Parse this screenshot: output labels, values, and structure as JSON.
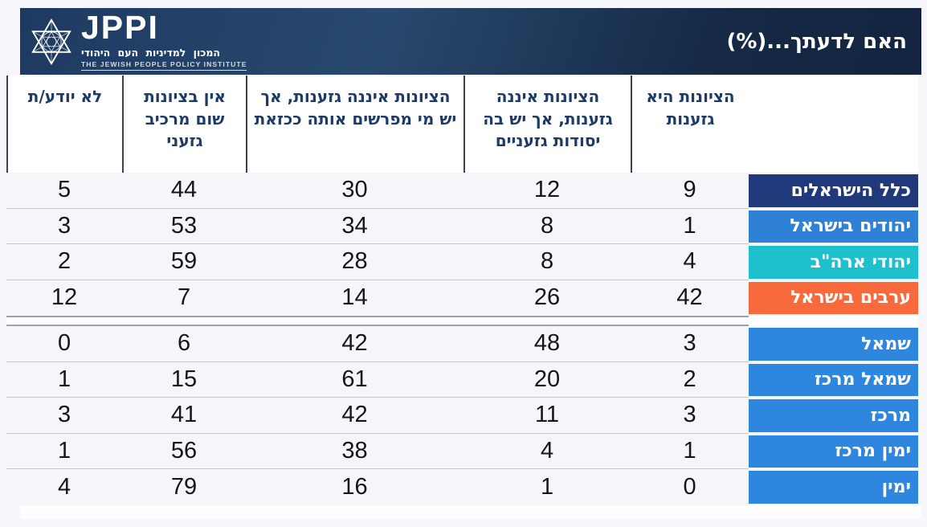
{
  "title": "האם לדעתך...(%)",
  "brand": {
    "acronym": "JPPI",
    "hebrew_name": "המכון למדיניות העם היהודי",
    "english_name": "THE JEWISH PEOPLE POLICY INSTITUTE"
  },
  "colors": {
    "band_navy": "#1e3a62",
    "header_text": "#1e3a67",
    "all_israelis": "#20397b",
    "jews_israel": "#2f81d5",
    "us_jews": "#1dc0cc",
    "arabs_israel": "#f86a3c",
    "political_blue": "#2e86de"
  },
  "chart_data": {
    "type": "table",
    "title": "האם לדעתך...(%)",
    "direction": "rtl",
    "columns": [
      "הציונות היא גזענות",
      "הציונות איננה גזענות, אך יש בה יסודות גזעניים",
      "הציונות איננה גזענות, אך יש מי מפרשים אותה ככזאת",
      "אין בציונות שום מרכיב גזעני",
      "לא יודע/ת"
    ],
    "groups": [
      {
        "name": "audiences",
        "rows": [
          {
            "label": "כלל הישראלים",
            "color": "#20397b",
            "values": [
              9,
              12,
              30,
              44,
              5
            ]
          },
          {
            "label": "יהודים בישראל",
            "color": "#2f81d5",
            "values": [
              1,
              8,
              34,
              53,
              3
            ]
          },
          {
            "label": "יהודי ארה\"ב",
            "color": "#1dc0cc",
            "values": [
              4,
              8,
              28,
              59,
              2
            ]
          },
          {
            "label": "ערבים בישראל",
            "color": "#f86a3c",
            "values": [
              42,
              26,
              14,
              7,
              12
            ]
          }
        ]
      },
      {
        "name": "political-camps",
        "rows": [
          {
            "label": "שמאל",
            "color": "#2e86de",
            "values": [
              3,
              48,
              42,
              6,
              0
            ]
          },
          {
            "label": "שמאל מרכז",
            "color": "#2e86de",
            "values": [
              2,
              20,
              61,
              15,
              1
            ]
          },
          {
            "label": "מרכז",
            "color": "#2e86de",
            "values": [
              3,
              11,
              42,
              41,
              3
            ]
          },
          {
            "label": "ימין מרכז",
            "color": "#2e86de",
            "values": [
              1,
              4,
              38,
              56,
              1
            ]
          },
          {
            "label": "ימין",
            "color": "#2e86de",
            "values": [
              0,
              1,
              16,
              79,
              4
            ]
          }
        ]
      }
    ]
  }
}
